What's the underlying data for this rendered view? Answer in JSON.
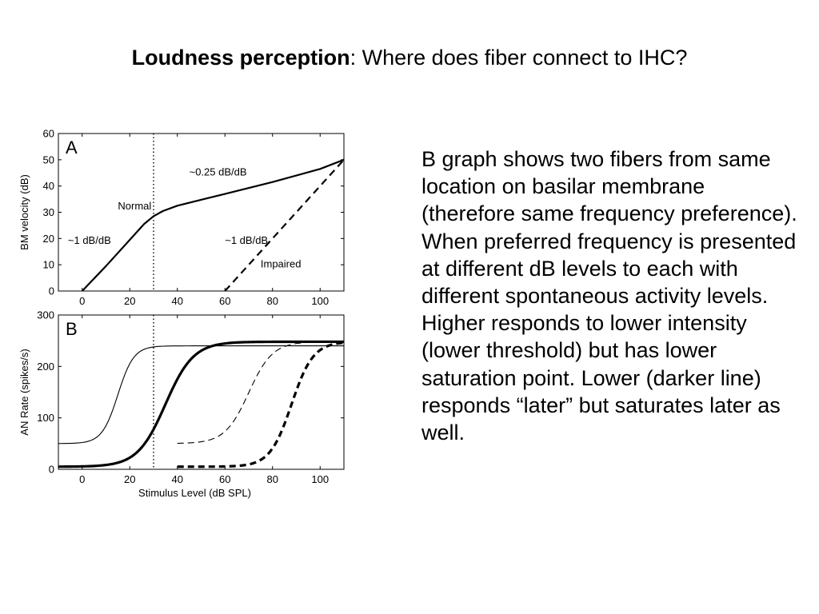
{
  "slide": {
    "title_bold": "Loudness perception",
    "title_rest": ": Where does fiber connect to IHC?",
    "body": "B graph shows two fibers from same location on basilar membrane (therefore same frequency preference). When preferred frequency is presented at different dB levels to each with different spontaneous activity levels. Higher responds to lower intensity (lower threshold) but has lower saturation point. Lower (darker line) responds “later” but saturates later as well."
  },
  "chart_data": [
    {
      "panel_letter": "A",
      "type": "line",
      "ylabel": "BM velocity (dB)",
      "xlim": [
        -10,
        110
      ],
      "ylim": [
        0,
        60
      ],
      "xticks": [
        0,
        20,
        40,
        60,
        80,
        100
      ],
      "yticks": [
        0,
        10,
        20,
        30,
        40,
        50,
        60
      ],
      "vline_x": 30,
      "series": [
        {
          "style": "solid",
          "x": [
            0,
            10,
            20,
            26,
            30,
            34,
            40,
            60,
            80,
            100,
            110
          ],
          "y": [
            0,
            9.5,
            19.5,
            25.5,
            28.5,
            30.5,
            32.5,
            37,
            41.5,
            46.5,
            50
          ]
        },
        {
          "style": "dashed",
          "x": [
            60,
            110
          ],
          "y": [
            0,
            50
          ]
        }
      ],
      "annotations": [
        {
          "text": "Normal",
          "x": 15,
          "y": 31
        },
        {
          "text": "~1 dB/dB",
          "x": -6,
          "y": 18
        },
        {
          "text": "~0.25 dB/dB",
          "x": 45,
          "y": 44
        },
        {
          "text": "~1 dB/dB",
          "x": 60,
          "y": 18
        },
        {
          "text": "Impaired",
          "x": 75,
          "y": 9
        }
      ]
    },
    {
      "panel_letter": "B",
      "type": "line",
      "xlabel": "Stimulus Level (dB SPL)",
      "ylabel": "AN Rate (spikes/s)",
      "xlim": [
        -10,
        110
      ],
      "ylim": [
        0,
        300
      ],
      "xticks": [
        0,
        20,
        40,
        60,
        80,
        100
      ],
      "yticks": [
        0,
        100,
        200,
        300
      ],
      "vline_x": 30,
      "series": [
        {
          "style": "thin-solid",
          "sigmoid": {
            "min": 50,
            "max": 240,
            "mid": 15,
            "slope": 0.3
          },
          "x_range": [
            -10,
            110
          ]
        },
        {
          "style": "thick-solid",
          "sigmoid": {
            "min": 5,
            "max": 248,
            "mid": 35,
            "slope": 0.17
          },
          "x_range": [
            -10,
            110
          ]
        },
        {
          "style": "thin-dashed",
          "sigmoid": {
            "min": 50,
            "max": 248,
            "mid": 70,
            "slope": 0.2
          },
          "x_range": [
            40,
            110
          ]
        },
        {
          "style": "thick-dashed",
          "sigmoid": {
            "min": 5,
            "max": 248,
            "mid": 88,
            "slope": 0.22
          },
          "x_range": [
            40,
            110
          ]
        }
      ]
    }
  ]
}
